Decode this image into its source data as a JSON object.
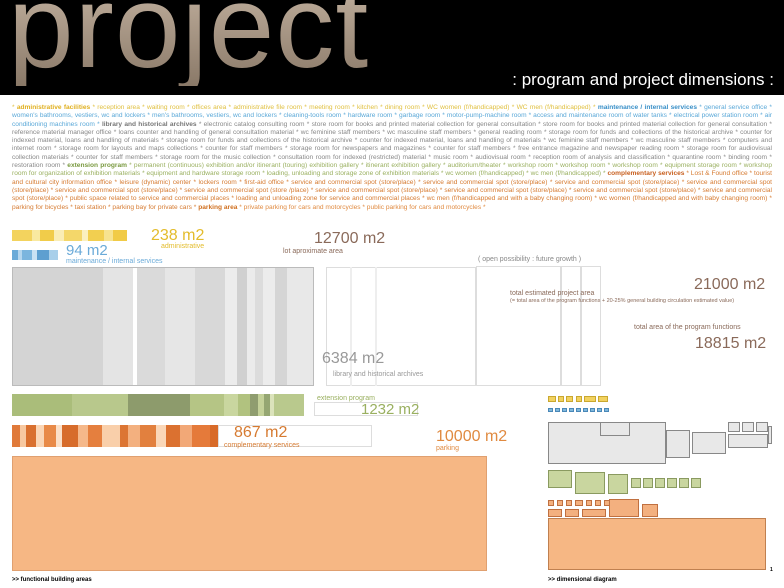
{
  "header": {
    "title": "project",
    "subtitle": ": program and project dimensions :"
  },
  "description": {
    "administrative_heading": "administrative facilities",
    "administrative_text": "* reception area * waiting room * offices area * administrative file room * meeting room * kitchen * dining room * WC women (f/handicapped) * WC men (f/handicapped) *",
    "maintenance_heading": "maintenance / internal services",
    "maintenance_text": "* general service office * women's bathrooms, vestiers, wc and lockers * men's bathrooms, vestiers, wc and lockers * cleaning-tools room * hardware room * garbage room * motor-pump-machine room * access and maintenance room of water tanks * electrical power station room * air conditioning machines room *",
    "library_heading": "library and historical archives",
    "library_text": "* electronic catalog consulting room * store room for books and printed material collection for general consultation * store room for books and printed material collection for general consultation * reference material manager office * loans counter and handling of general consultation material * wc feminine staff members * wc masculine staff members * general reading room * storage room for funds and collections of the historical archive * counter for indexed material, loans and handling of materials * storage room for funds and collections of the historical archive * counter for indexed material, loans and handling of materials * wc feminine staff members * wc masculine staff members * computers and internet room * storage room for layouts and maps collections * counter for staff members * storage room for newspapers and magazines * counter for staff members * free entrance magazine and newspaper reading room * storage room for audiovisual collection materials * counter for staff members * storage room for the music collection * consultation room for indexed (restricted) material * music room * audiovisual room * reception room of analysis and classification * quarantine room * binding room * restoration room *",
    "extension_heading": "extension program",
    "extension_text": "* permanent (continuous) exhibition and/or itinerant (touring) exhibition gallery * itinerant exhibition gallery * auditorium/theater * workshop room * workshop room * workshop room * equipment storage room * workshop room for organization of exhibition materials * equipment and hardware storage room * loading, unloading and storage zone of exhibition materials * wc women (f/handicapped) * wc men (f/handicapped) *",
    "complementary_heading": "complementary services",
    "complementary_text": "* Lost & Found office * tourist and cultural city information office * leisure (dynamic) center * lockers room * first-aid office * service and commercial spot (store/place) * service and commercial spot (store/place) * service and commercial spot (store/place) * service and commercial spot (store/place) * service and commercial spot (store/place) * service and commercial spot (store /place) * service and commercial spot (store/place) * service and commercial spot (store/place) * service and commercial spot (store/place) * service and commercial spot (store/place) * public space related to service and commercial places * loading and unloading zone for service and commercial places * wc men (f/handicapped and with a baby changing room) * wc women (f/handicapped and with baby changing room) * parking for bicycles * taxi station * parking bay for private cars *",
    "parking_heading": "parking area",
    "parking_text": "* private parking for cars and motorcycles * public parking for cars and motorcycles *"
  },
  "areas": {
    "administrative": {
      "value": "238 m2",
      "label": "administrative"
    },
    "maintenance": {
      "value": "94 m2",
      "label": "maintenance / internal services"
    },
    "lot": {
      "value": "12700 m2",
      "label": "lot aproximate area"
    },
    "future": {
      "label": "( open possibility : future growth )"
    },
    "total_estimated": {
      "value": "21000 m2",
      "label": "total estimated project area",
      "note": "(= total area of the program functions + 20-25% general building circulation estimated value)"
    },
    "total_program": {
      "value": "18815 m2",
      "label": "total area of the program functions"
    },
    "library": {
      "value": "6384 m2",
      "label": "library and historical archives"
    },
    "extension": {
      "value": "1232 m2",
      "label": "extension program"
    },
    "complementary": {
      "value": "867 m2",
      "label": "complementary services"
    },
    "parking": {
      "value": "10000 m2",
      "label": "parking"
    }
  },
  "footer": {
    "left": ">> functional building areas",
    "right": ">> dimensional diagram",
    "page_mark": "1"
  },
  "colors": {
    "administrative": "#f2d260",
    "maintenance": "#7fb8dc",
    "library": "#d8d8d8",
    "extension": "#a9bc78",
    "complementary": "#e3884a",
    "parking": "#f5b883",
    "lot": "#8a6a5a"
  }
}
